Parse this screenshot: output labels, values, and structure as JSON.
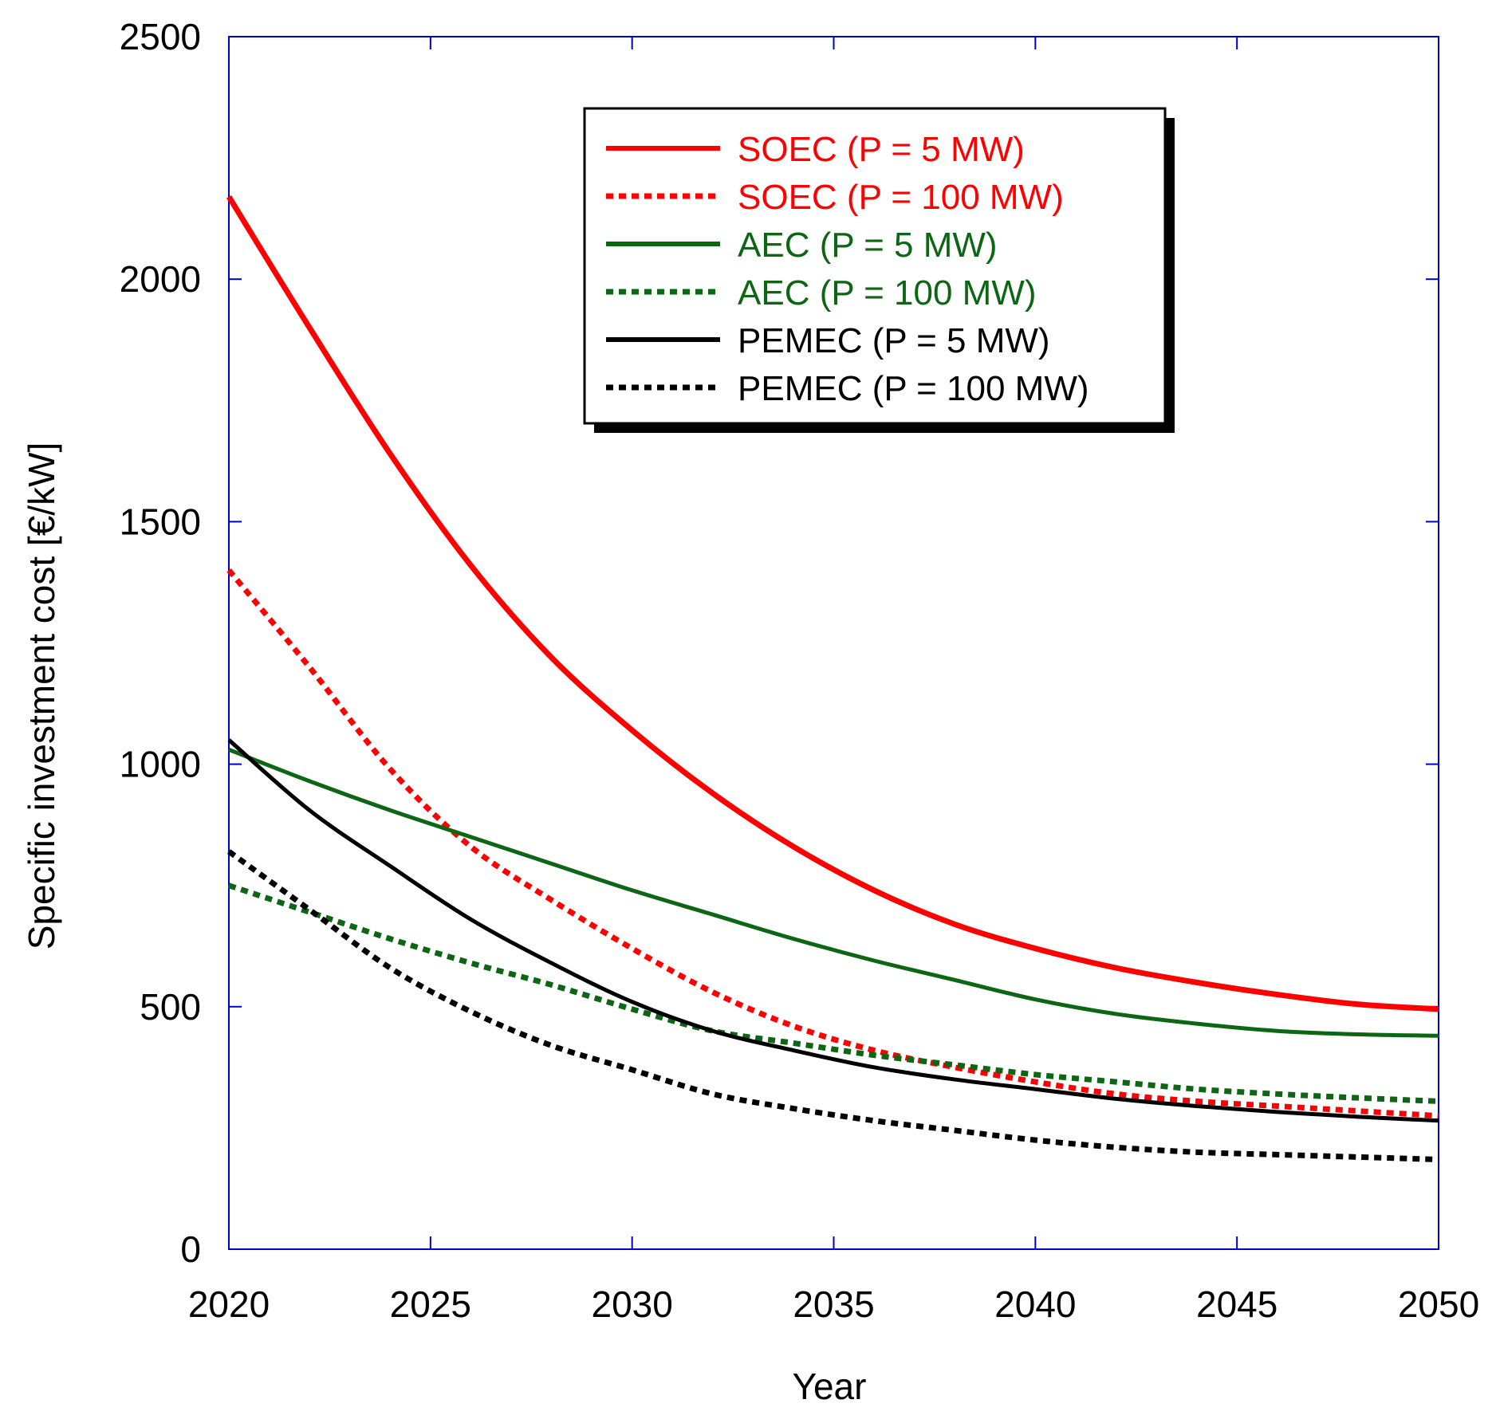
{
  "chart_data": {
    "type": "line",
    "title": "",
    "xlabel": "Year",
    "ylabel": "Specific investment cost [€/kW]",
    "xlim": [
      2020,
      2050
    ],
    "ylim": [
      0,
      2500
    ],
    "x_ticks": [
      2020,
      2025,
      2030,
      2035,
      2040,
      2045,
      2050
    ],
    "y_ticks": [
      0,
      500,
      1000,
      1500,
      2000,
      2500
    ],
    "grid": false,
    "legend_position": "top-right",
    "x": [
      2020,
      2022,
      2024,
      2026,
      2028,
      2030,
      2032,
      2034,
      2036,
      2038,
      2040,
      2042,
      2044,
      2046,
      2048,
      2050
    ],
    "series": [
      {
        "name": "SOEC (P = 5 MW)",
        "color": "#ff0000",
        "style": "solid",
        "width": "thick",
        "values": [
          2170,
          1900,
          1640,
          1410,
          1220,
          1070,
          940,
          830,
          740,
          670,
          620,
          580,
          550,
          525,
          505,
          495
        ]
      },
      {
        "name": "SOEC (P = 100 MW)",
        "color": "#ff0000",
        "style": "dashed",
        "width": "thick",
        "values": [
          1400,
          1200,
          990,
          830,
          720,
          620,
          530,
          460,
          410,
          375,
          345,
          320,
          305,
          295,
          285,
          275
        ]
      },
      {
        "name": "AEC (P = 5 MW)",
        "color": "#0d6614",
        "style": "solid",
        "width": "thick",
        "values": [
          1030,
          965,
          905,
          850,
          795,
          740,
          690,
          640,
          595,
          555,
          515,
          485,
          465,
          450,
          443,
          440
        ]
      },
      {
        "name": "AEC (P = 100 MW)",
        "color": "#0d6614",
        "style": "dashed",
        "width": "thick",
        "values": [
          750,
          695,
          640,
          590,
          545,
          495,
          450,
          425,
          400,
          380,
          360,
          345,
          330,
          320,
          312,
          305
        ]
      },
      {
        "name": "PEMEC (P = 5 MW)",
        "color": "#000000",
        "style": "solid",
        "width": "thick",
        "values": [
          1050,
          905,
          790,
          680,
          590,
          510,
          450,
          410,
          375,
          350,
          330,
          310,
          295,
          283,
          273,
          265
        ]
      },
      {
        "name": "PEMEC (P = 100 MW)",
        "color": "#000000",
        "style": "dashed",
        "width": "thick",
        "values": [
          820,
          700,
          580,
          490,
          420,
          370,
          320,
          290,
          265,
          245,
          225,
          210,
          200,
          195,
          190,
          185
        ]
      }
    ]
  }
}
